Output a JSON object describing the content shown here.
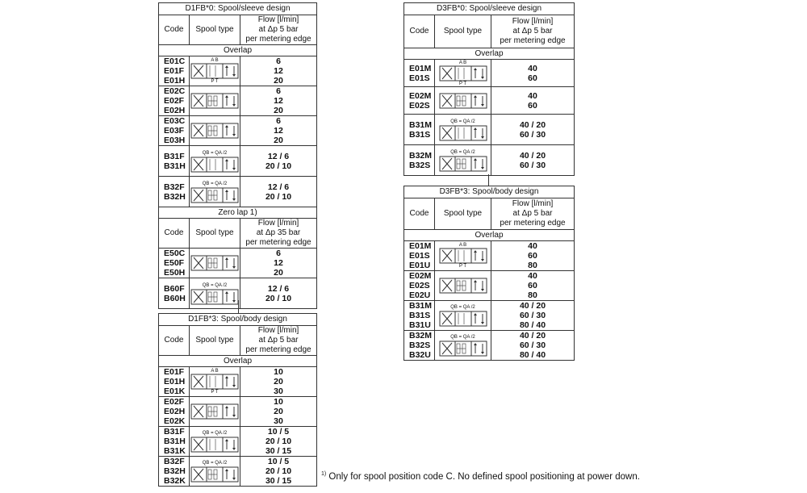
{
  "tables": [
    {
      "id": "d1fb0",
      "title": "D1FB*0: Spool/sleeve design",
      "sections": [
        {
          "label": "Overlap",
          "header": {
            "code": "Code",
            "spool": "Spool type",
            "flow": [
              "Flow [l/min]",
              "at Δp 5 bar",
              "per metering edge"
            ]
          },
          "rows": [
            {
              "codes": [
                "E01C",
                "E01F",
                "E01H"
              ],
              "flows": [
                "6",
                "12",
                "20"
              ],
              "symbol": "spool-E01",
              "ports_top": "A B",
              "ports_bottom": "P T"
            },
            {
              "codes": [
                "E02C",
                "E02F",
                "E02H"
              ],
              "flows": [
                "6",
                "12",
                "20"
              ],
              "symbol": "spool-E02"
            },
            {
              "codes": [
                "E03C",
                "E03F",
                "E03H"
              ],
              "flows": [
                "6",
                "12",
                "20"
              ],
              "symbol": "spool-E03"
            },
            {
              "codes": [
                "B31F",
                "B31H"
              ],
              "flows": [
                "12 / 6",
                "20 / 10"
              ],
              "symbol": "spool-B31",
              "note": "QB = QA /2"
            },
            {
              "codes": [
                "B32F",
                "B32H"
              ],
              "flows": [
                "12 / 6",
                "20 / 10"
              ],
              "symbol": "spool-B32",
              "note": "QB = QA /2"
            }
          ]
        },
        {
          "label": "Zero lap 1)",
          "header": {
            "code": "Code",
            "spool": "Spool type",
            "flow": [
              "Flow [l/min]",
              "at Δp 35 bar",
              "per metering edge"
            ]
          },
          "rows": [
            {
              "codes": [
                "E50C",
                "E50F",
                "E50H"
              ],
              "flows": [
                "6",
                "12",
                "20"
              ],
              "symbol": "spool-E50"
            },
            {
              "codes": [
                "B60F",
                "B60H"
              ],
              "flows": [
                "12 / 6",
                "20 / 10"
              ],
              "symbol": "spool-B60",
              "note": "QB = QA /2"
            }
          ]
        }
      ]
    },
    {
      "id": "d1fb3",
      "title": "D1FB*3: Spool/body design",
      "sections": [
        {
          "label": "Overlap",
          "header": {
            "code": "Code",
            "spool": "Spool type",
            "flow": [
              "Flow [l/min]",
              "at Δp 5 bar",
              "per metering edge"
            ]
          },
          "rows": [
            {
              "codes": [
                "E01F",
                "E01H",
                "E01K"
              ],
              "flows": [
                "10",
                "20",
                "30"
              ],
              "symbol": "spool-E01",
              "ports_top": "A B",
              "ports_bottom": "P T"
            },
            {
              "codes": [
                "E02F",
                "E02H",
                "E02K"
              ],
              "flows": [
                "10",
                "20",
                "30"
              ],
              "symbol": "spool-E02"
            },
            {
              "codes": [
                "B31F",
                "B31H",
                "B31K"
              ],
              "flows": [
                "10 / 5",
                "20 / 10",
                "30 / 15"
              ],
              "symbol": "spool-B31",
              "note": "QB = QA /2"
            },
            {
              "codes": [
                "B32F",
                "B32H",
                "B32K"
              ],
              "flows": [
                "10 / 5",
                "20 / 10",
                "30 / 15"
              ],
              "symbol": "spool-B32",
              "note": "QB = QA /2"
            }
          ]
        }
      ]
    },
    {
      "id": "d3fb0",
      "title": "D3FB*0: Spool/sleeve design",
      "sections": [
        {
          "label": "Overlap",
          "header": {
            "code": "Code",
            "spool": "Spool type",
            "flow": [
              "Flow [l/min]",
              "at Δp 5 bar",
              "per metering edge"
            ]
          },
          "rows": [
            {
              "codes": [
                "E01M",
                "E01S"
              ],
              "flows": [
                "40",
                "60"
              ],
              "symbol": "spool-E01",
              "ports_top": "A B",
              "ports_bottom": "P T"
            },
            {
              "codes": [
                "E02M",
                "E02S"
              ],
              "flows": [
                "40",
                "60"
              ],
              "symbol": "spool-E02"
            },
            {
              "codes": [
                "B31M",
                "B31S"
              ],
              "flows": [
                "40 / 20",
                "60 / 30"
              ],
              "symbol": "spool-B31",
              "note": "QB = QA /2"
            },
            {
              "codes": [
                "B32M",
                "B32S"
              ],
              "flows": [
                "40 / 20",
                "60 / 30"
              ],
              "symbol": "spool-B32",
              "note": "QB = QA /2"
            }
          ]
        }
      ]
    },
    {
      "id": "d3fb3",
      "title": "D3FB*3: Spool/body design",
      "sections": [
        {
          "label": "Overlap",
          "header": {
            "code": "Code",
            "spool": "Spool type",
            "flow": [
              "Flow [l/min]",
              "at Δp 5 bar",
              "per metering edge"
            ]
          },
          "rows": [
            {
              "codes": [
                "E01M",
                "E01S",
                "E01U"
              ],
              "flows": [
                "40",
                "60",
                "80"
              ],
              "symbol": "spool-E01",
              "ports_top": "A B",
              "ports_bottom": "P T"
            },
            {
              "codes": [
                "E02M",
                "E02S",
                "E02U"
              ],
              "flows": [
                "40",
                "60",
                "80"
              ],
              "symbol": "spool-E02"
            },
            {
              "codes": [
                "B31M",
                "B31S",
                "B31U"
              ],
              "flows": [
                "40 / 20",
                "60 / 30",
                "80 / 40"
              ],
              "symbol": "spool-B31",
              "note": "QB = QA /2"
            },
            {
              "codes": [
                "B32M",
                "B32S",
                "B32U"
              ],
              "flows": [
                "40 / 20",
                "60 / 30",
                "80 / 40"
              ],
              "symbol": "spool-B32",
              "note": "QB = QA /2"
            }
          ]
        }
      ]
    }
  ],
  "footnote": {
    "marker": "1)",
    "text": " Only for spool position code C. No defined spool positioning at power down."
  }
}
